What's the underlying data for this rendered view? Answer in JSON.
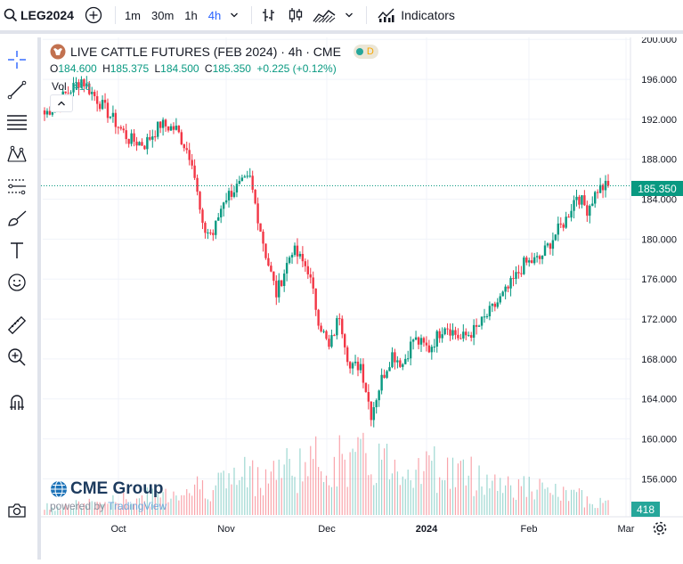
{
  "topbar": {
    "symbol": "LEG2024",
    "intervals": [
      "1m",
      "30m",
      "1h",
      "4h"
    ],
    "active_interval": "4h",
    "indicators_label": "Indicators"
  },
  "legend": {
    "title": "LIVE CATTLE FUTURES (FEB 2024) · 4h · CME",
    "badge": "D",
    "o_label": "O",
    "o": "184.600",
    "h_label": "H",
    "h": "185.375",
    "l_label": "L",
    "l": "184.500",
    "c_label": "C",
    "c": "185.350",
    "change": "+0.225 (+0.12%)",
    "vol_label": "Vol",
    "vol_value": "418"
  },
  "price_axis": {
    "current_price": "185.350",
    "current_volume": "418"
  },
  "branding": {
    "name": "CME Group",
    "powered_by": "powered by",
    "provider": "TradingView"
  },
  "colors": {
    "up": "#089981",
    "down": "#f23645",
    "grid": "#f0f3fa",
    "accent": "#2962ff"
  },
  "chart_data": {
    "type": "candlestick",
    "symbol": "LEG2024",
    "interval": "4h",
    "ylim": [
      152.2,
      200.2
    ],
    "y_ticks": [
      "200.000",
      "196.000",
      "192.000",
      "188.000",
      "184.000",
      "180.000",
      "176.000",
      "172.000",
      "168.000",
      "164.000",
      "160.000",
      "156.000"
    ],
    "x_ticks": [
      "Oct",
      "Nov",
      "Dec",
      "2024",
      "Feb",
      "Mar"
    ],
    "last_close": 185.35,
    "last_volume": 418,
    "anchors": [
      [
        0,
        192.5
      ],
      [
        8,
        194.5
      ],
      [
        14,
        196.0
      ],
      [
        20,
        194.0
      ],
      [
        26,
        192.0
      ],
      [
        32,
        190.0
      ],
      [
        38,
        189.5
      ],
      [
        44,
        191.5
      ],
      [
        50,
        191.0
      ],
      [
        56,
        188.0
      ],
      [
        60,
        181.0
      ],
      [
        64,
        180.5
      ],
      [
        68,
        184.0
      ],
      [
        72,
        185.0
      ],
      [
        78,
        186.0
      ],
      [
        84,
        178.5
      ],
      [
        88,
        174.5
      ],
      [
        94,
        179.0
      ],
      [
        100,
        177.0
      ],
      [
        104,
        172.0
      ],
      [
        108,
        169.0
      ],
      [
        112,
        172.5
      ],
      [
        116,
        167.0
      ],
      [
        120,
        167.5
      ],
      [
        124,
        162.5
      ],
      [
        128,
        166.0
      ],
      [
        132,
        168.5
      ],
      [
        136,
        167.5
      ],
      [
        140,
        170.0
      ],
      [
        146,
        169.0
      ],
      [
        152,
        171.5
      ],
      [
        158,
        170.0
      ],
      [
        164,
        171.0
      ],
      [
        170,
        173.0
      ],
      [
        176,
        175.0
      ],
      [
        182,
        177.5
      ],
      [
        188,
        178.0
      ],
      [
        194,
        180.5
      ],
      [
        198,
        182.0
      ],
      [
        202,
        184.5
      ],
      [
        206,
        183.0
      ],
      [
        210,
        185.0
      ],
      [
        214,
        185.35
      ]
    ]
  }
}
